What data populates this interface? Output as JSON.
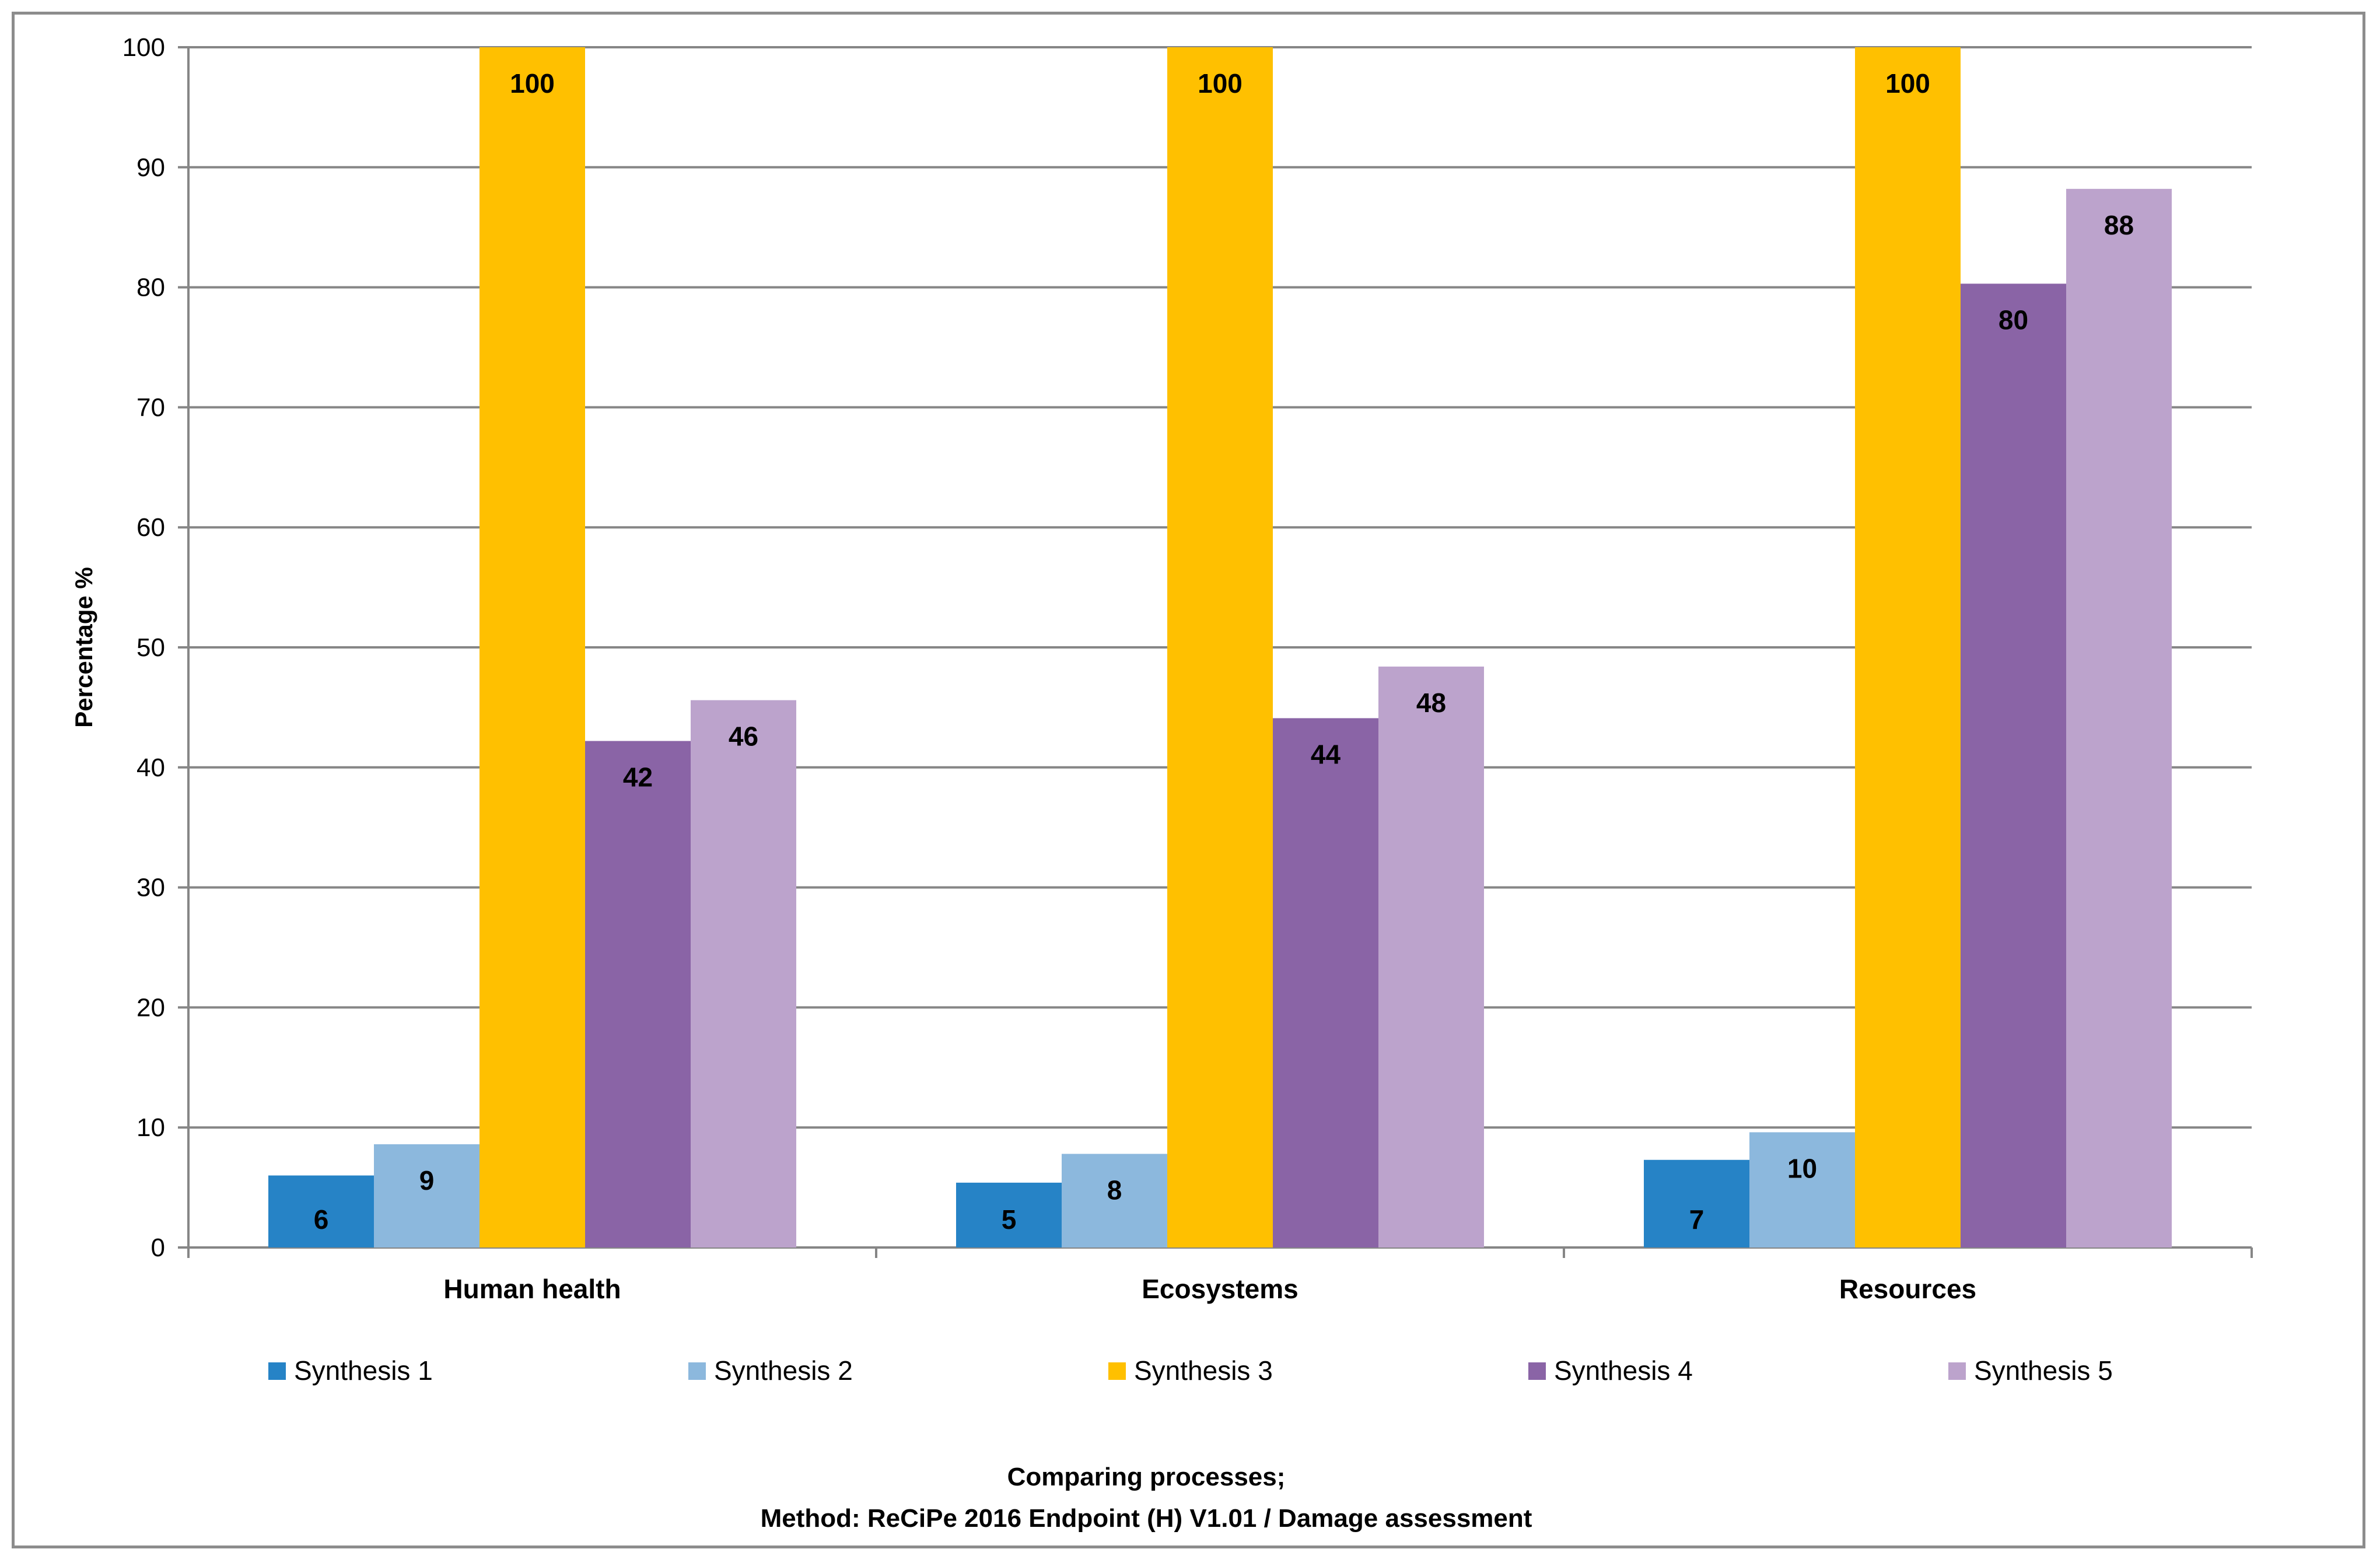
{
  "chart_data": {
    "type": "bar",
    "title": "Comparing processes;",
    "subtitle": "Method: ReCiPe 2016 Endpoint (H) V1.01 / Damage assessment",
    "xlabel": "",
    "ylabel": "Percentage %",
    "ylim": [
      0,
      100
    ],
    "yticks": [
      0,
      10,
      20,
      30,
      40,
      50,
      60,
      70,
      80,
      90,
      100
    ],
    "grid": true,
    "legend_position": "bottom",
    "categories": [
      "Human health",
      "Ecosystems",
      "Resources"
    ],
    "series": [
      {
        "name": "Synthesis 1",
        "color": "#2683c6",
        "values": [
          6,
          5.4,
          7.3
        ],
        "labels": [
          "6",
          "5",
          "7"
        ]
      },
      {
        "name": "Synthesis 2",
        "color": "#8cb8dd",
        "values": [
          8.6,
          7.8,
          9.6
        ],
        "labels": [
          "9",
          "8",
          "10"
        ]
      },
      {
        "name": "Synthesis 3",
        "color": "#ffc000",
        "values": [
          100,
          100,
          100
        ],
        "labels": [
          "100",
          "100",
          "100"
        ]
      },
      {
        "name": "Synthesis 4",
        "color": "#8a64a6",
        "values": [
          42.2,
          44.1,
          80.3
        ],
        "labels": [
          "42",
          "44",
          "80"
        ]
      },
      {
        "name": "Synthesis 5",
        "color": "#bca3cc",
        "values": [
          45.6,
          48.4,
          88.2
        ],
        "labels": [
          "46",
          "48",
          "88"
        ]
      }
    ]
  }
}
